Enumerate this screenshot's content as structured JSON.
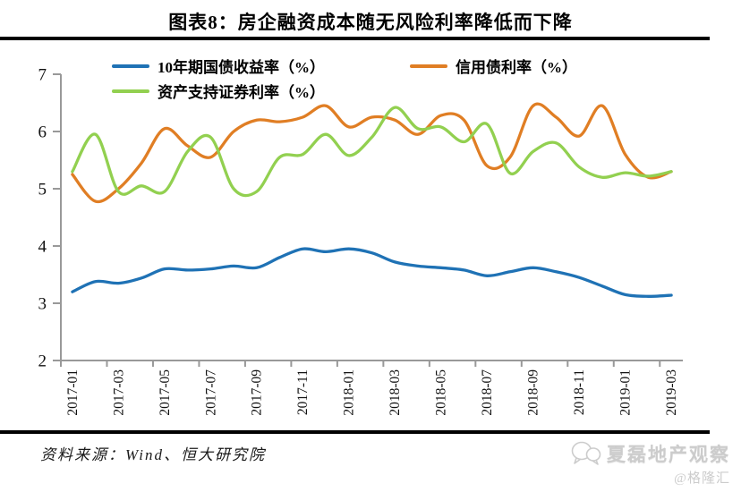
{
  "title": "图表8：房企融资成本随无风险利率降低而下降",
  "source_note": "资料来源：Wind、恒大研究院",
  "watermark": {
    "name": "夏磊地产观察",
    "handle": "@格隆汇"
  },
  "colors": {
    "axis": "#999999",
    "rule": "#000000",
    "tick_label": "#111111"
  },
  "chart_data": {
    "type": "line",
    "smooth": true,
    "grid": false,
    "legend_position": "top",
    "ylim": [
      2,
      7
    ],
    "yticks": [
      2,
      3,
      4,
      5,
      6,
      7
    ],
    "x": [
      "2017-01",
      "2017-02",
      "2017-03",
      "2017-04",
      "2017-05",
      "2017-06",
      "2017-07",
      "2017-08",
      "2017-09",
      "2017-10",
      "2017-11",
      "2017-12",
      "2018-01",
      "2018-02",
      "2018-03",
      "2018-04",
      "2018-05",
      "2018-06",
      "2018-07",
      "2018-08",
      "2018-09",
      "2018-10",
      "2018-11",
      "2018-12",
      "2019-01",
      "2019-02",
      "2019-03"
    ],
    "x_tick_labels": [
      "2017-01",
      "2017-03",
      "2017-05",
      "2017-07",
      "2017-09",
      "2017-11",
      "2018-01",
      "2018-03",
      "2018-05",
      "2018-07",
      "2018-09",
      "2018-11",
      "2019-01",
      "2019-03"
    ],
    "series": [
      {
        "name": "10年期国债收益率（%）",
        "color": "#1F72B5",
        "values": [
          3.2,
          3.38,
          3.35,
          3.44,
          3.6,
          3.58,
          3.6,
          3.65,
          3.62,
          3.8,
          3.95,
          3.9,
          3.95,
          3.88,
          3.72,
          3.65,
          3.62,
          3.58,
          3.48,
          3.55,
          3.62,
          3.55,
          3.45,
          3.3,
          3.15,
          3.12,
          3.14
        ]
      },
      {
        "name": "信用债利率（%）",
        "color": "#E07E24",
        "values": [
          5.25,
          4.78,
          5.0,
          5.45,
          6.05,
          5.75,
          5.55,
          6.0,
          6.2,
          6.17,
          6.25,
          6.45,
          6.08,
          6.25,
          6.2,
          5.95,
          6.28,
          6.2,
          5.4,
          5.55,
          6.45,
          6.25,
          5.92,
          6.45,
          5.6,
          5.2,
          5.3
        ]
      },
      {
        "name": "资产支持证券利率（%）",
        "color": "#92D050",
        "values": [
          5.3,
          5.95,
          4.95,
          5.05,
          4.95,
          5.65,
          5.9,
          5.0,
          4.95,
          5.55,
          5.6,
          5.95,
          5.58,
          5.9,
          6.42,
          6.05,
          6.08,
          5.82,
          6.13,
          5.27,
          5.65,
          5.8,
          5.38,
          5.2,
          5.28,
          5.22,
          5.3
        ]
      }
    ]
  }
}
